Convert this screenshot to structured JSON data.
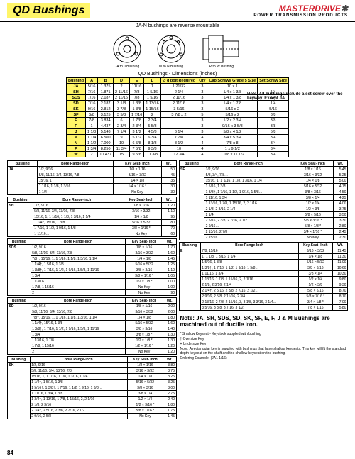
{
  "header": {
    "title": "QD Bushings",
    "brand": "MASTERDRIVE",
    "brand_sub": "POWER TRANSMISSION PRODUCTS"
  },
  "subtitle": "JA-N bushings are reverse mountable",
  "dim_title": "QD Bushings - Dimensions (inches)",
  "diag_labels": {
    "a": "JA to J\nBushing",
    "b": "M to N\nBushing",
    "c": "P to W\nBushing"
  },
  "note_right": "Note: All bushings include a set screw over the keyway. Except JA.",
  "main_headers": [
    "Bushing",
    "A",
    "B",
    "D",
    "E",
    "L",
    "∅ d bolt\nRequired",
    "Qty",
    "Cap Screws Grade 5\nSize",
    "Set Screw\nSize"
  ],
  "main_rows": [
    [
      "JA",
      "5/16",
      "1.375",
      "2",
      "11/16",
      "1",
      "1 21/32",
      "3",
      "10 x 1",
      ""
    ],
    [
      "SH",
      "7/16",
      "1.871",
      "2 11/16",
      "7/8",
      "1 5/16",
      "2 1/4",
      "3",
      "1/4 x 1 3/8",
      "1/4"
    ],
    [
      "SDS",
      "7/16",
      "2.187",
      "2 11/16",
      "7/8",
      "1 5/16",
      "2 11/16",
      "3",
      "1/4 x 1 3/8",
      "1/4"
    ],
    [
      "SD",
      "7/16",
      "2.187",
      "3 1/8",
      "1 3/8",
      "1 13/16",
      "2 11/16",
      "3",
      "1/4 x 1 7/8",
      "1/4"
    ],
    [
      "SK",
      "9/16",
      "2.812",
      "3 7/8",
      "1 3/8",
      "1 15/16",
      "3 5/16",
      "3",
      "5/16 x 2",
      "5/16"
    ],
    [
      "SF",
      "5/8",
      "3.125",
      "3 5/8",
      "1 7/16",
      "2",
      "3 7/8 x 2",
      "5",
      "5/16 x 2",
      "3/8"
    ],
    [
      "E",
      "7/8",
      "3.834",
      "6",
      "1 7/8",
      "2 3/4",
      "",
      "3",
      "1/2 x 2 3/4",
      "3/8"
    ],
    [
      "F",
      "1",
      "4.437",
      "2 3/4",
      "2 3/4",
      "5 5/8",
      "",
      "3",
      "9/16 x 3 5/8",
      "3/8"
    ],
    [
      "J",
      "1 1/8",
      "5.148",
      "7 1/4",
      "3 1/2",
      "4 5/8",
      "6 1/4",
      "3",
      "5/8 x 4 1/2",
      "5/8"
    ],
    [
      "M",
      "1 1/4",
      "6.500",
      "9",
      "5 1/2",
      "6 3/4",
      "7 7/8",
      "4",
      "3/4 x 5 3/4",
      "3/4"
    ],
    [
      "N",
      "1 1/2",
      "7.000",
      "10",
      "6 5/8",
      "8 1/8",
      "8 1/2",
      "4",
      "7/8 x 8",
      "3/4"
    ],
    [
      "P",
      "1 3/4",
      "8.250",
      "11 3/4",
      "7 5/8",
      "9 3/8",
      "10",
      "4",
      "1 x 9 1/2",
      "3/4"
    ],
    [
      "W",
      "2",
      "10.437",
      "15",
      "9 5/8",
      "11 3/8",
      "12 3/4",
      "4",
      "1 1/8 x 11 1/2",
      "3/4"
    ]
  ],
  "bore_header": [
    "Bushing",
    "Bore Range-Inch",
    "Key Seat- Inch",
    "Wt."
  ],
  "left_tables": [
    {
      "bushing": "JA",
      "rows": [
        [
          "1/2, 9/16",
          "1/8 × 1/16",
          ".50"
        ],
        [
          "5/8, 11/16, 3/4, 13/16, 7/8",
          "3/16 × 3/32",
          ".45"
        ],
        [
          "15/16, 1",
          "1/4 × 1/8",
          ".35"
        ],
        [
          "1 1/16, 1 1/8, 1 3/16",
          "1/4 × 1/16 *",
          ".30"
        ],
        [
          "1 1/4",
          "No Key",
          ".30"
        ]
      ]
    },
    {
      "bushing": "SH",
      "rows": [
        [
          "1/2, 9/16",
          "1/8 × 1/16",
          "1.20"
        ],
        [
          "5/8, 11/16, 3/4, 13/16, 7/8",
          "3/16 × 3/32",
          "1.10"
        ],
        [
          "15/16, 1, 1 1/16, 1 1/8, 1 3/16, 1 1/4",
          "1/4 × 1/8",
          ".95"
        ],
        [
          "1 1/4†, 15/16, 1 3/8",
          "5/16 × 5/32",
          ".80"
        ],
        [
          "1 7/16, 1 1/2, 1 9/16, 1 5/8",
          "3/8 × 1/16 *",
          ".70"
        ],
        [
          "1 11/16…",
          "No Key",
          ".60"
        ]
      ]
    },
    {
      "bushing": "SDS",
      "rows": [
        [
          "1/2, 9/16",
          "1/8 × 1/16",
          "1.70"
        ],
        [
          "5/8, 11/16, 3/4, 13/16, 7/8",
          "3/16 × 3/32",
          "1.60"
        ],
        [
          "7/8†, 15/16, 1, 1 1/16, 1 1/8, 1 3/16, 1 1/4",
          "1/4 × 1/8",
          "1.45"
        ],
        [
          "1 1/4†, 1 5/16, 1 3/8",
          "5/16 × 5/32",
          "1.25"
        ],
        [
          "1 3/8†, 1 7/16, 1 1/2, 1 9/16, 1 5/8, 1 11/16",
          "3/8 × 3/16",
          "1.10"
        ],
        [
          "1 3/4",
          "3/8 × 1/16 *",
          "1.05"
        ],
        [
          "1 13/16",
          "1/2 × 1/8 *",
          "1.00"
        ],
        [
          "1 7/8, 1 15/16",
          "No Key",
          "1.00"
        ],
        [
          "2",
          "No Key",
          ".90"
        ]
      ]
    },
    {
      "bushing": "SD",
      "rows": [
        [
          "1/2, 9/16",
          "1/8 × 1/16",
          "2.00"
        ],
        [
          "5/8, 11/16, 3/4, 13/16, 7/8",
          "3/16 × 3/32",
          "2.00"
        ],
        [
          "7/8†, 15/16, 1, 1 1/16, 1 1/8, 1 3/16, 1 1/4",
          "1/4 × 1/8",
          "1.80"
        ],
        [
          "1 1/4†, 15/16, 1 3/8",
          "5/16 × 5/32",
          "1.60"
        ],
        [
          "1 3/8†, 1 7/16, 1 1/2, 1 9/16, 1 5/8, 1 11/16",
          "3/8 × 3/16",
          "1.40"
        ],
        [
          "1 3/4",
          "3/8 × 1/8 *",
          "1.30"
        ],
        [
          "1 13/16, 1 7/8",
          "1/2 × 1/8 *",
          "1.30"
        ],
        [
          "1 7/8, 1 15/16",
          "1/2 × 1/16 *",
          "1.20"
        ],
        [
          "2",
          "No Key",
          "1.20"
        ]
      ]
    },
    {
      "bushing": "SK",
      "rows": [
        [
          "1/2, 9/16",
          "1/8 × 1/16",
          "3.80"
        ],
        [
          "5/8, 11/16, 3/4, 13/16, 7/8",
          "3/16 × 3/32",
          "3.75"
        ],
        [
          "15/16, 1, 1 1/16, 1 1/8, 1 3/16, 1 1/4",
          "1/4 × 1/8",
          "3.25"
        ],
        [
          "1 1/4†, 1 5/16, 1 3/8",
          "5/16 × 5/32",
          "3.25"
        ],
        [
          "1 5/16†, 1 3/8†, 1 7/16, 1 1/2, 1 9/16, 1 3/8…",
          "3/8 × 3/16",
          "3.00"
        ],
        [
          "1 11/16, 1 3/4, 1 3/8…",
          "3/8 × 1/4",
          "2.75"
        ],
        [
          "1 3/4†, 1 13/16, 1 7/8, 1 15/16, 2, 2 1/16",
          "1/2 × 1/4",
          "2.40"
        ],
        [
          "2 1/8, 2 3/16",
          "1/2 × 3/16 *",
          "1.80"
        ],
        [
          "2 1/4†, 2 5/16, 2 3/8, 2 7/16, 2 1/2…",
          "5/8 × 1/16 *",
          "1.75"
        ],
        [
          "2 9/16, 2 5/8",
          "No Key",
          "1.45"
        ]
      ]
    }
  ],
  "right_tables": [
    {
      "bushing": "SF",
      "rows": [
        [
          "1/2, 9/16",
          "1/8 × 1/16",
          "5.45"
        ],
        [
          "5/8, 3/4, 7/8…",
          "3/16 × 3/32",
          "5.25"
        ],
        [
          "15/16, 1, 1 1/16, 1 1/8, 1 3/16, 1 1/4",
          "1/4 × 1/8",
          "5.00"
        ],
        [
          "1 5/16, 1 3/8",
          "5/16 × 5/32",
          "4.75"
        ],
        [
          "1 3/8†, 1 7/16, 1 1/2, 1 9/16, 1 5/8…",
          "3/8 × 3/16",
          "4.50"
        ],
        [
          "1 11/16, 1 3/4",
          "3/8 × 1/4",
          "4.25"
        ],
        [
          "1 13/16, 1 7/8, 1 15/16, 2, 2 1/16…",
          "1/2 × 1/4",
          "4.00"
        ],
        [
          "2 1/8, 2 3/16, 2 1/4",
          "1/2 × 3/8",
          "3.75"
        ],
        [
          "2 1/4",
          "5/8 × 5/16",
          "3.50"
        ],
        [
          "2 5/16, 2 3/8, 2 7/16, 2 1/2",
          "5/8 × 3/16 *",
          "3.30"
        ],
        [
          "2 9/16…",
          "5/8 × 1/8 *",
          "2.80"
        ],
        [
          "2 13/16, 2 7/8",
          "3/4 × 1/16 *",
          "2.45"
        ],
        [
          "2 15/16",
          "No Key",
          "2.30"
        ]
      ]
    },
    {
      "bushing": "E",
      "rows": [
        [
          "7/8, 15/16",
          "3/16 × 3/32",
          "11.45"
        ],
        [
          "1, 1 1/8, 1 3/16, 1 1/4",
          "1/4 × 1/8",
          "11.30"
        ],
        [
          "1 5/16, 1 3/8",
          "5/16 × 5/32",
          "11.00"
        ],
        [
          "1 3/8†, 1 7/16, 1 1/2, 1 9/16, 1 5/8…",
          "3/8 × 3/16",
          "10.60"
        ],
        [
          "1 11/16, 1 3/4",
          "3/8 × 1/4",
          "10.30"
        ],
        [
          "1 13/16, 1 7/8, 1 15/16, 2, 2 1/16…",
          "1/2 × 1/4",
          "9.80"
        ],
        [
          "2 1/8, 2 3/16, 2 1/4",
          "1/2 × 3/8",
          "9.30"
        ],
        [
          "2 1/4†, 2 5/16, 2 3/8, 2 7/16, 2 1/2…",
          "5/8 × 5/16",
          "8.70"
        ],
        [
          "2 9/16, 2 5/8, 2 11/16, 2 3/4",
          "5/8 × 7/16 *",
          "8.10"
        ],
        [
          "2 13/16, 2 7/8, 2 15/16, 3, 3 1/8, 3 3/16, 3 1/4…",
          "3/4 × 1/8 *",
          "7.00"
        ],
        [
          "3 5/16, 3 3/8, 3 7/16, 3 1/2",
          "7/8 × 1/16",
          "5.80"
        ]
      ]
    }
  ],
  "note_block": "Note: JA, SH, SDS, SD, SK, SF, E, F, J & M Bushings are machined out of ductile iron.",
  "footnotes": [
    "* Shallow Keyseat - Keystock supplied with bushing",
    "† Oversize Key",
    "+ Undersize Key",
    "Note: A rectangular key is supplied with bushings that have shallow keyseats. This key will fit the standard depth keyseat on the shaft and the shallow keyseat on the bushing.",
    "Ordering Example: (JA1 1/16)"
  ],
  "page_num": "84"
}
